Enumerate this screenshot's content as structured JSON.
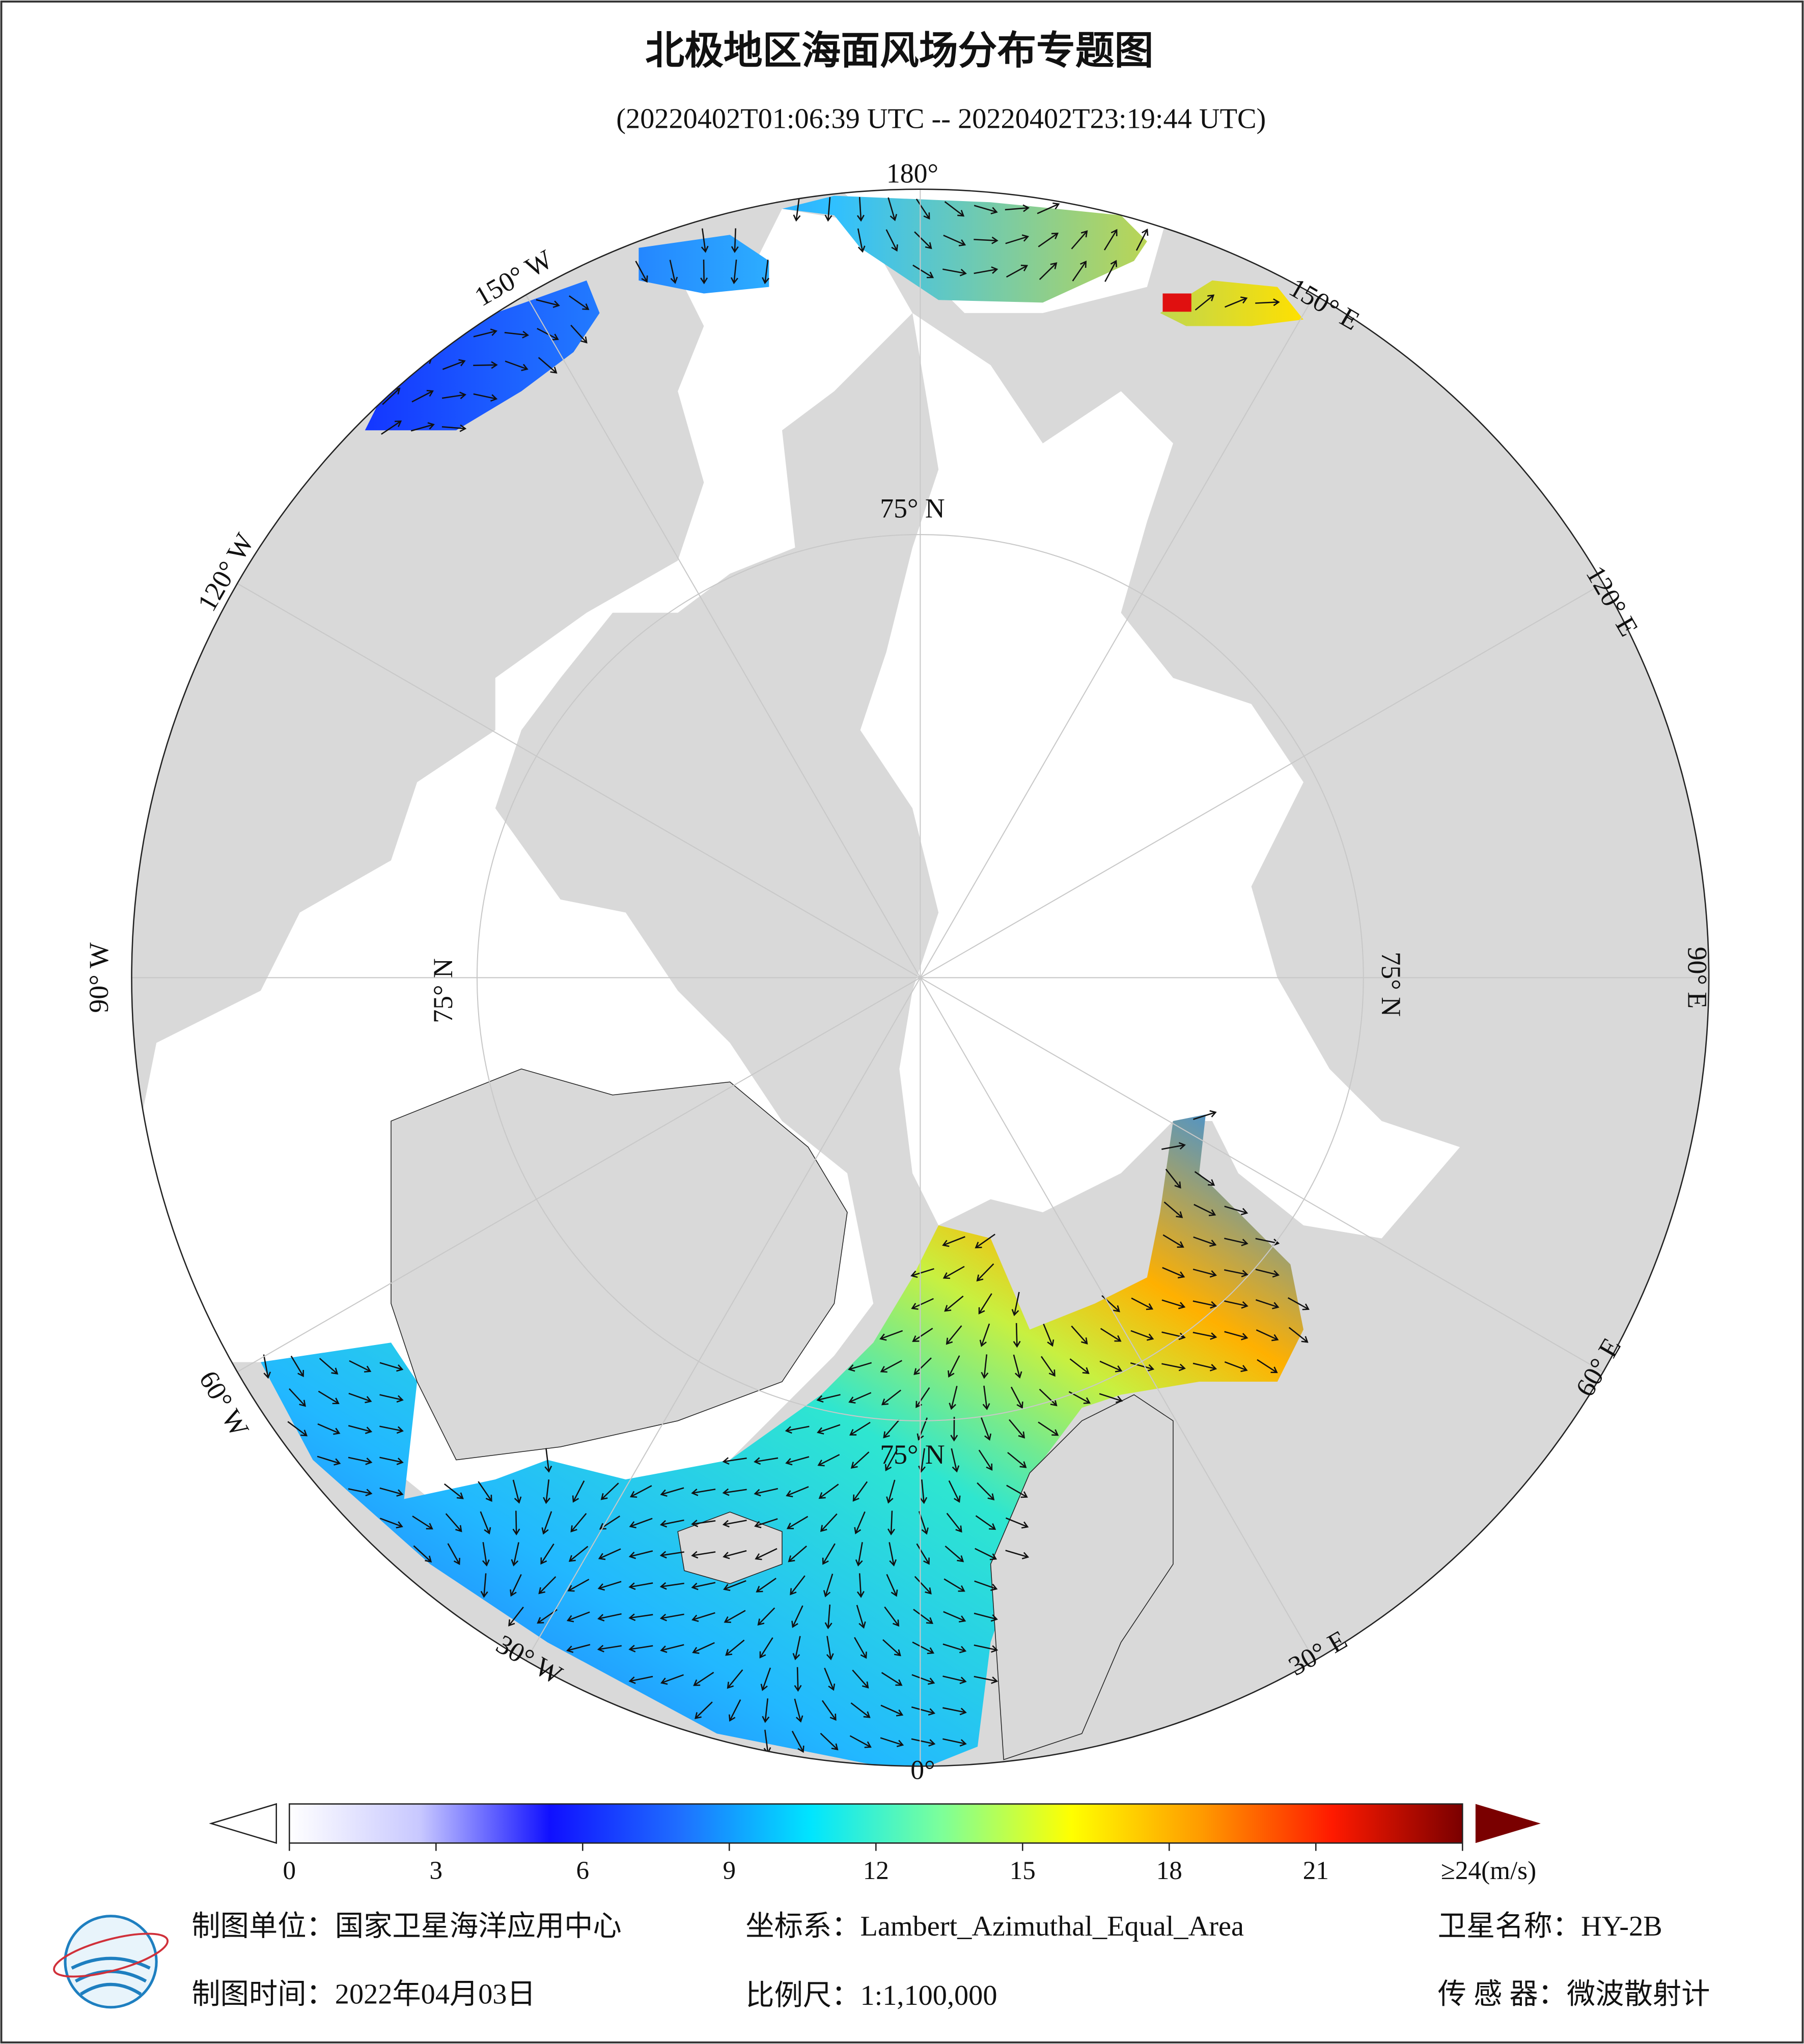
{
  "header": {
    "title": "北极地区海面风场分布专题图",
    "subtitle": "(20220402T01:06:39 UTC -- 20220402T23:19:44 UTC)"
  },
  "map": {
    "longitude_labels": [
      "180°",
      "150° W",
      "120° W",
      "90° W",
      "60° W",
      "30° W",
      "0°",
      "30° E",
      "60° E",
      "90° E",
      "120° E",
      "150° E"
    ],
    "latitude_labels": [
      "75° N",
      "75° N",
      "75° N",
      "75° N"
    ]
  },
  "colorbar": {
    "range": [
      0,
      24
    ],
    "colors": [
      "#ffffff",
      "#c8c8ff",
      "#1010ff",
      "#1f6fff",
      "#00e5ff",
      "#7cff9a",
      "#ffff00",
      "#ff9a00",
      "#ff1a00",
      "#7a0000"
    ],
    "ticks": [
      0,
      3,
      6,
      9,
      12,
      15,
      18,
      21,
      {
        "value": 24,
        "label": "≥24(m/s)"
      }
    ]
  },
  "footer": {
    "unit": "制图单位：国家卫星海洋应用中心",
    "coordinate_system": "坐标系：Lambert_Azimuthal_Equal_Area",
    "satellite": "卫星名称：HY-2B",
    "date": "制图时间：2022年04月03日",
    "scale": "比例尺：1:1,100,000",
    "sensor": "传 感 器：微波散射计"
  }
}
